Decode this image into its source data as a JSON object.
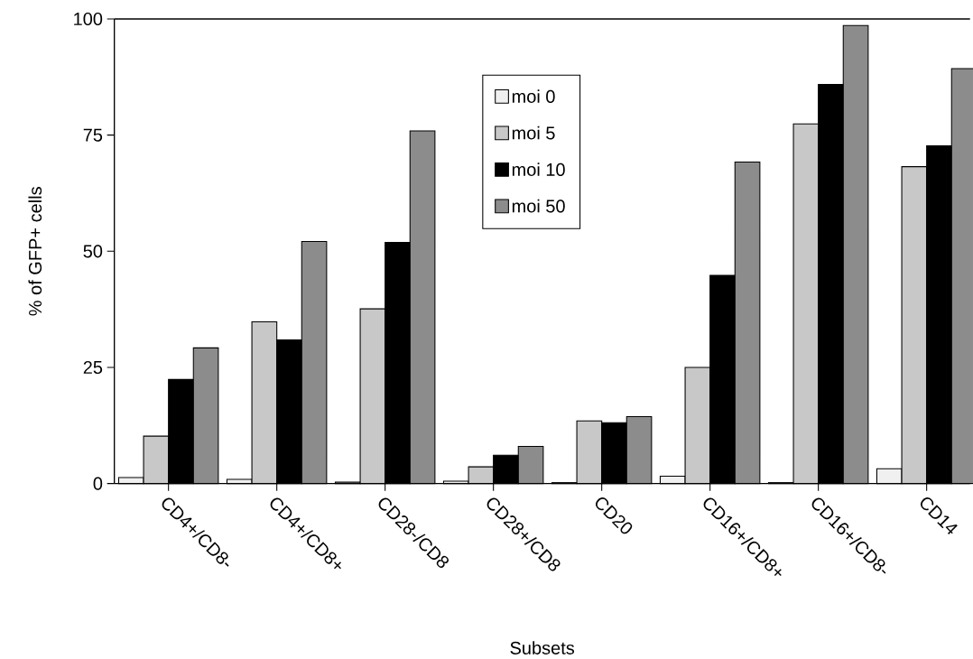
{
  "chart_data": {
    "type": "bar",
    "xlabel": "Subsets",
    "ylabel": "% of GFP+ cells",
    "categories": [
      "CD4+/CD8-",
      "CD4+/CD8+",
      "CD28-/CD8",
      "CD28+/CD8",
      "CD20",
      "CD16+/CD8+",
      "CD16+/CD8-",
      "CD14"
    ],
    "series": [
      {
        "name": "moi 0",
        "color": "#f0f0f0",
        "values": [
          1.3,
          0.9,
          0.3,
          0.5,
          0.2,
          1.6,
          0.2,
          3.2
        ]
      },
      {
        "name": "moi 5",
        "color": "#c8c8c8",
        "values": [
          10.2,
          34.8,
          37.6,
          3.6,
          13.5,
          25.0,
          77.4,
          68.2
        ]
      },
      {
        "name": "moi 10",
        "color": "#000000",
        "values": [
          22.4,
          30.9,
          51.9,
          6.1,
          13.1,
          44.8,
          85.9,
          72.7
        ]
      },
      {
        "name": "moi 50",
        "color": "#8c8c8c",
        "values": [
          29.2,
          52.1,
          75.9,
          8.0,
          14.4,
          69.2,
          98.6,
          89.3
        ]
      }
    ],
    "ylim": [
      0,
      100
    ],
    "yticks": [
      0,
      25,
      50,
      75,
      100
    ],
    "grid": false,
    "legend": "top"
  }
}
